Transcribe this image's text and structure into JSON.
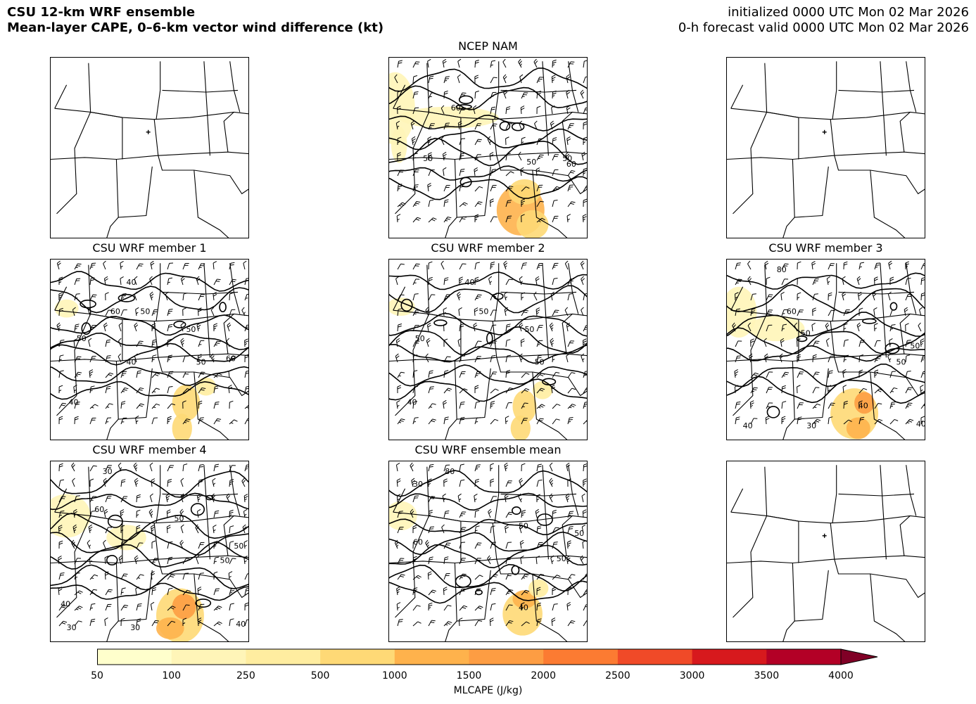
{
  "header": {
    "title_line1": "CSU 12-km WRF ensemble",
    "title_line2": "Mean-layer CAPE, 0–6-km vector wind difference (kt)",
    "init_line": "initialized 0000 UTC Mon 02 Mar 2026",
    "valid_line": "0-h forecast valid 0000 UTC Mon 02 Mar 2026"
  },
  "panels": [
    {
      "title": "",
      "has_data": false,
      "labels": []
    },
    {
      "title": "NCEP NAM",
      "has_data": true,
      "labels": [
        "60",
        "50",
        "50",
        "50",
        "60"
      ]
    },
    {
      "title": "",
      "has_data": false,
      "labels": []
    },
    {
      "title": "CSU WRF member 1",
      "has_data": true,
      "labels": [
        "40",
        "60",
        "50",
        "50",
        "50",
        "50",
        "40",
        "60",
        "40"
      ]
    },
    {
      "title": "CSU WRF member 2",
      "has_data": true,
      "labels": [
        "40",
        "50",
        "50",
        "50",
        "50",
        "40"
      ]
    },
    {
      "title": "CSU WRF member 3",
      "has_data": true,
      "labels": [
        "80",
        "60",
        "50",
        "50",
        "50",
        "40",
        "40",
        "30",
        "40"
      ]
    },
    {
      "title": "CSU WRF member 4",
      "has_data": true,
      "labels": [
        "30",
        "60",
        "50",
        "50",
        "50",
        "40",
        "30",
        "30",
        "40"
      ]
    },
    {
      "title": "CSU WRF ensemble mean",
      "has_data": true,
      "labels": [
        "80",
        "30",
        "50",
        "50",
        "60",
        "50",
        "40"
      ]
    },
    {
      "title": "",
      "has_data": false,
      "labels": []
    }
  ],
  "colorbar": {
    "label": "MLCAPE (J/kg)",
    "ticks": [
      "50",
      "100",
      "250",
      "500",
      "1000",
      "1500",
      "2000",
      "2500",
      "3000",
      "3500",
      "4000"
    ],
    "colors": [
      "#ffffcc",
      "#fff5b8",
      "#ffeda0",
      "#fed976",
      "#feb24c",
      "#fd9d43",
      "#fc7b32",
      "#f04a28",
      "#d7191d",
      "#b30026",
      "#800026"
    ]
  },
  "icons": {
    "state_boundaries": "state-boundary-lines",
    "location_marker": "plus-marker-icon",
    "wind_barbs": "wind-barb-icon",
    "colorbar_extend": "triangle-right-icon"
  }
}
